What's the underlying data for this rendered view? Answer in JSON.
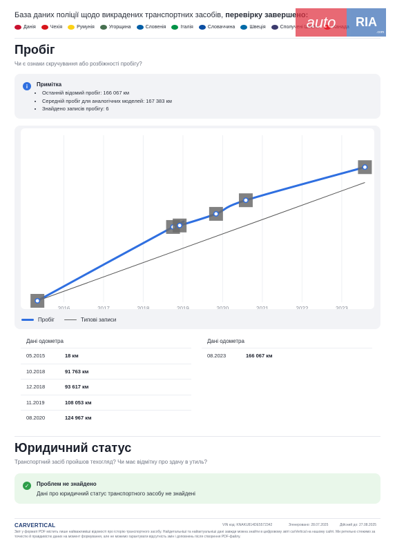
{
  "header": {
    "title_prefix": "База даних поліції щодо викрадених транспортних засобів, ",
    "title_bold": "перевірку завершено:",
    "countries": [
      {
        "name": "Данія",
        "color": "#c8102e"
      },
      {
        "name": "Чехія",
        "color": "#d7141a"
      },
      {
        "name": "Румунія",
        "color": "#fcd116"
      },
      {
        "name": "Угорщина",
        "color": "#477050"
      },
      {
        "name": "Словенія",
        "color": "#005da4"
      },
      {
        "name": "Італія",
        "color": "#009246"
      },
      {
        "name": "Словаччина",
        "color": "#0b4ea2"
      },
      {
        "name": "Швеція",
        "color": "#006aa7"
      },
      {
        "name": "Сполучені Штати",
        "color": "#3c3b6e"
      },
      {
        "name": "Канада",
        "color": "#ff0000"
      }
    ],
    "logo": {
      "part1": "auto",
      "part2": "RIA",
      "part3": ".com"
    }
  },
  "mileage": {
    "title": "Пробіг",
    "subtitle": "Чи є ознаки скручування або розбіжності пробігу?",
    "note": {
      "icon": "info-icon",
      "title": "Примітка",
      "items": [
        "Останній відомий пробіг: 166 067 км",
        "Середній пробіг для аналогічних моделей: 167 383 км",
        "Знайдено записів пробігу: 6"
      ]
    },
    "chart_data": {
      "type": "line",
      "x_ticks": [
        "2016",
        "2017",
        "2018",
        "2019",
        "2020",
        "2021",
        "2022",
        "2023"
      ],
      "series": [
        {
          "name": "Пробіг",
          "color": "#2f6fe0",
          "points": [
            [
              "05.2015",
              18
            ],
            [
              "10.2018",
              91763
            ],
            [
              "12.2018",
              93617
            ],
            [
              "11.2019",
              108053
            ],
            [
              "08.2020",
              124967
            ],
            [
              "08.2023",
              166067
            ]
          ]
        },
        {
          "name": "Типові записи",
          "color": "#555555",
          "points": [
            [
              "05.2015",
              18
            ],
            [
              "08.2023",
              147000
            ]
          ]
        }
      ],
      "legend": [
        "Пробіг",
        "Типові записи"
      ]
    },
    "odometer_label": "Дані одометра",
    "table_left": [
      {
        "date": "05.2015",
        "value": "18 км"
      },
      {
        "date": "10.2018",
        "value": "91 763 км"
      },
      {
        "date": "12.2018",
        "value": "93 617 км"
      },
      {
        "date": "11.2019",
        "value": "108 053 км"
      },
      {
        "date": "08.2020",
        "value": "124 967 км"
      }
    ],
    "table_right": [
      {
        "date": "08.2023",
        "value": "166 067 км"
      }
    ]
  },
  "legal": {
    "title": "Юридичний статус",
    "subtitle": "Транспортний засіб пройшов техогляд? Чи має відмітку про здачу в утиль?",
    "status_icon": "check-icon",
    "status_title": "Проблем не знайдено",
    "status_text": "Дані про юридичний статус транспортного засобу не знайдені"
  },
  "footer": {
    "brand": "CARVERTICAL",
    "vin": "VIN код: KNAKU814DE5572342",
    "generated": "Згенеровано: 28.07.2025",
    "valid": "Дійсний до: 27.08.2025",
    "disclaimer": "Звіт у форматі PDF містить лише найважливіші відомості про історію транспортного засобу. Найдетальніші та найактуальніші дані завжди можна знайти в цифровому звіті carVertical на нашому сайті. Ми ретельно стежимо за точністю й правдивістю даних на момент формування, але не можемо гарантувати відсутність змін і доповнень після створення PDF-файлу."
  }
}
